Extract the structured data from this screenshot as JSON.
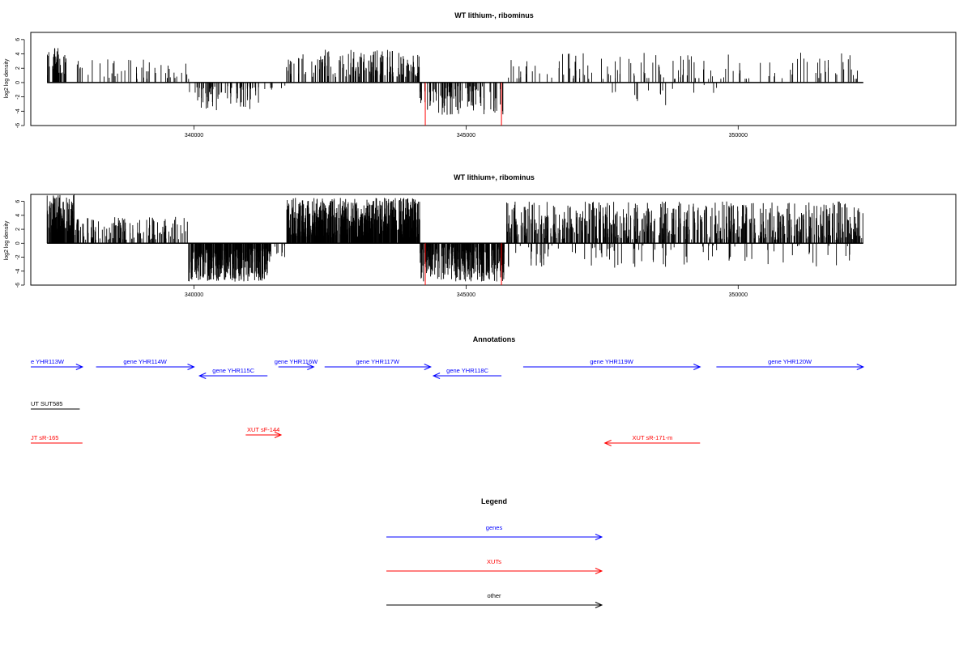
{
  "colors": {
    "gene": "#0000ff",
    "xut": "#ff0000",
    "other": "#000000",
    "bar": "#000000",
    "highlight": "#ff0000"
  },
  "chart_data": [
    {
      "type": "bar",
      "title": "WT lithium-, ribominus",
      "ylabel": "log2 log density",
      "xlim": [
        337000,
        354000
      ],
      "ylim": [
        -6,
        7
      ],
      "yticks": [
        "6",
        "4",
        "2",
        "0",
        "-2",
        "-4",
        "-6"
      ],
      "yticks_values": [
        6,
        4,
        2,
        0,
        -2,
        -4,
        -6
      ],
      "xticks": [
        {
          "value": 340000,
          "label": "340000"
        },
        {
          "value": 345000,
          "label": "345000"
        },
        {
          "value": 350000,
          "label": "350000"
        }
      ],
      "data_range": [
        337300,
        352300
      ],
      "highlight_bars": [
        {
          "x": 344250,
          "y": -6
        },
        {
          "x": 345650,
          "y": -6
        }
      ],
      "segments": [
        {
          "from": 337300,
          "to": 337650,
          "sign": 1,
          "minh": 1.0,
          "maxh": 5.0,
          "density": 16
        },
        {
          "from": 337650,
          "to": 339900,
          "sign": 1,
          "minh": 0.5,
          "maxh": 3.5,
          "density": 3
        },
        {
          "from": 339900,
          "to": 341200,
          "sign": -1,
          "minh": 0.5,
          "maxh": 4.0,
          "density": 8
        },
        {
          "from": 341200,
          "to": 341700,
          "sign": -1,
          "minh": 0.3,
          "maxh": 1.2,
          "density": 2
        },
        {
          "from": 341700,
          "to": 344150,
          "sign": 1,
          "minh": 0.8,
          "maxh": 4.6,
          "density": 10
        },
        {
          "from": 344150,
          "to": 345700,
          "sign": -1,
          "minh": 0.5,
          "maxh": 4.5,
          "density": 9
        },
        {
          "from": 345700,
          "to": 352300,
          "sign": 1,
          "minh": 0.5,
          "maxh": 4.2,
          "density": 3
        },
        {
          "from": 347500,
          "to": 349700,
          "sign": -1,
          "minh": 0.3,
          "maxh": 3.5,
          "density": 1
        }
      ]
    },
    {
      "type": "bar",
      "title": "WT lithium+, ribominus",
      "ylabel": "log2 log density",
      "xlim": [
        337000,
        354000
      ],
      "ylim": [
        -6,
        7
      ],
      "yticks": [
        "6",
        "4",
        "2",
        "0",
        "-2",
        "-4",
        "-6"
      ],
      "yticks_values": [
        6,
        4,
        2,
        0,
        -2,
        -4,
        -6
      ],
      "xticks": [
        {
          "value": 340000,
          "label": "340000"
        },
        {
          "value": 345000,
          "label": "345000"
        },
        {
          "value": 350000,
          "label": "350000"
        }
      ],
      "data_range": [
        337300,
        352300
      ],
      "highlight_bars": [
        {
          "x": 344250,
          "y": -6
        },
        {
          "x": 345650,
          "y": -6
        }
      ],
      "segments": [
        {
          "from": 337300,
          "to": 337800,
          "sign": 1,
          "minh": 1.5,
          "maxh": 7.0,
          "density": 40
        },
        {
          "from": 337800,
          "to": 339900,
          "sign": 1,
          "minh": 0.5,
          "maxh": 3.8,
          "density": 10
        },
        {
          "from": 339900,
          "to": 341400,
          "sign": -1,
          "minh": 0.8,
          "maxh": 5.5,
          "density": 35
        },
        {
          "from": 341400,
          "to": 341700,
          "sign": -1,
          "minh": 0.3,
          "maxh": 2.0,
          "density": 4
        },
        {
          "from": 341700,
          "to": 344150,
          "sign": 1,
          "minh": 0.8,
          "maxh": 6.5,
          "density": 40
        },
        {
          "from": 344150,
          "to": 345700,
          "sign": -1,
          "minh": 0.5,
          "maxh": 5.5,
          "density": 30
        },
        {
          "from": 345700,
          "to": 352300,
          "sign": 1,
          "minh": 0.5,
          "maxh": 6.0,
          "density": 15
        },
        {
          "from": 345700,
          "to": 352300,
          "sign": -1,
          "minh": 0.3,
          "maxh": 3.5,
          "density": 2
        }
      ]
    }
  ],
  "annotations": {
    "title": "Annotations",
    "items": [
      {
        "label": "e YHR113W",
        "kind": "gene",
        "from": 337000,
        "to": 337950,
        "dir": "right",
        "row": 0
      },
      {
        "label": "gene YHR114W",
        "kind": "gene",
        "from": 338200,
        "to": 340000,
        "dir": "right",
        "row": 0
      },
      {
        "label": "gene YHR115C",
        "kind": "gene",
        "from": 340100,
        "to": 341350,
        "dir": "left",
        "row": 1
      },
      {
        "label": "gene YHR116W",
        "kind": "gene",
        "from": 341550,
        "to": 342200,
        "dir": "right",
        "row": 0
      },
      {
        "label": "gene YHR117W",
        "kind": "gene",
        "from": 342400,
        "to": 344350,
        "dir": "right",
        "row": 0
      },
      {
        "label": "gene YHR118C",
        "kind": "gene",
        "from": 344400,
        "to": 345650,
        "dir": "left",
        "row": 1
      },
      {
        "label": "gene YHR119W",
        "kind": "gene",
        "from": 346050,
        "to": 349300,
        "dir": "right",
        "row": 0
      },
      {
        "label": "gene YHR120W",
        "kind": "gene",
        "from": 349600,
        "to": 352300,
        "dir": "right",
        "row": 0
      },
      {
        "label": "UT SUT585",
        "kind": "other",
        "from": 337000,
        "to": 337900,
        "dir": "none",
        "row": 2
      },
      {
        "label": "XUT sF-144",
        "kind": "xut",
        "from": 340950,
        "to": 341600,
        "dir": "right",
        "row": 3
      },
      {
        "label": "JT sR-165",
        "kind": "xut",
        "from": 337000,
        "to": 337950,
        "dir": "none",
        "row": 4
      },
      {
        "label": "XUT sR-171-m",
        "kind": "xut",
        "from": 347550,
        "to": 349300,
        "dir": "left",
        "row": 4
      }
    ]
  },
  "legend": {
    "title": "Legend",
    "items": [
      {
        "label": "genes",
        "kind": "gene"
      },
      {
        "label": "XUTs",
        "kind": "xut"
      },
      {
        "label": "other",
        "kind": "other"
      }
    ]
  }
}
